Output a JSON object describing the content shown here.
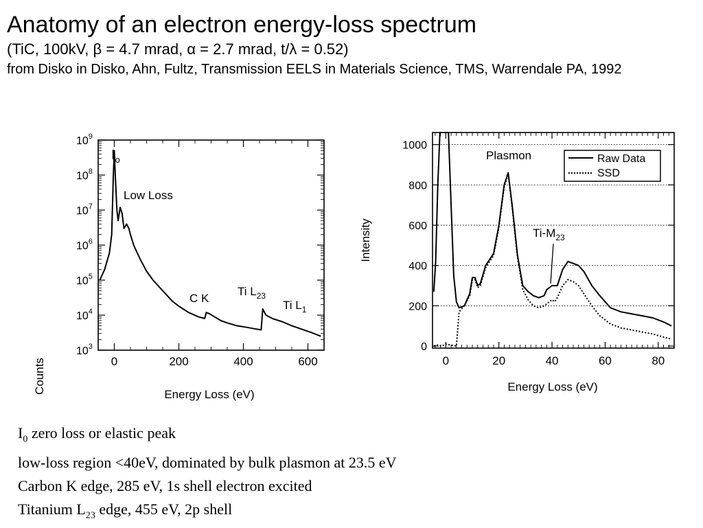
{
  "header": {
    "title": "Anatomy of an electron energy-loss spectrum",
    "subtitle_parts": [
      "(TiC, 100kV, ",
      "β",
      " = 4.7 mrad, ",
      "α",
      " = 2.7 mrad, t/",
      "λ",
      " = 0.52)"
    ],
    "source": "from Disko in Disko, Ahn, Fultz, Transmission EELS in Materials Science, TMS, Warrendale PA, 1992"
  },
  "chart_data": [
    {
      "type": "line",
      "xlabel": "Energy Loss (eV)",
      "ylabel": "Counts",
      "xlim": [
        -50,
        650
      ],
      "ylim": [
        1000,
        1000000000
      ],
      "yscale": "log",
      "x_ticks": [
        0,
        200,
        400,
        600
      ],
      "x_tick_labels": [
        "0",
        "200",
        "400",
        "600"
      ],
      "y_ticks": [
        {
          "base": "10",
          "exp": "3"
        },
        {
          "base": "10",
          "exp": "4"
        },
        {
          "base": "10",
          "exp": "5"
        },
        {
          "base": "10",
          "exp": "6"
        },
        {
          "base": "10",
          "exp": "7"
        },
        {
          "base": "10",
          "exp": "8"
        },
        {
          "base": "10",
          "exp": "9"
        }
      ],
      "series": [
        {
          "x": [
            -45,
            -30,
            -15,
            -8,
            -3,
            0,
            3,
            8,
            12,
            18,
            24,
            30,
            38,
            45,
            50,
            60,
            80,
            100,
            120,
            150,
            180,
            200,
            230,
            260,
            280,
            285,
            295,
            310,
            330,
            350,
            380,
            410,
            440,
            455,
            460,
            470,
            490,
            520,
            550,
            580,
            610,
            640
          ],
          "y": [
            100000,
            200000,
            600000,
            2000000,
            100000000,
            500000000,
            100000000,
            10000000,
            5000000,
            12000000,
            8000000,
            3000000,
            4000000,
            3000000,
            2000000,
            1000000,
            400000,
            180000,
            100000,
            50000,
            25000,
            18000,
            12000,
            9000,
            8000,
            12000,
            11000,
            9000,
            7000,
            6000,
            5000,
            4500,
            4000,
            3800,
            15000,
            10000,
            8000,
            6500,
            5000,
            4000,
            3200,
            2500
          ]
        }
      ],
      "annotations": [
        {
          "text": "I",
          "sub": "o"
        },
        {
          "text": "Low Loss"
        },
        {
          "text": "C K"
        },
        {
          "text": "Ti L",
          "sub": "23"
        },
        {
          "text": "Ti L",
          "sub": "1"
        }
      ]
    },
    {
      "type": "line",
      "xlabel": "Energy Loss (eV)",
      "ylabel": "Intensity",
      "xlim": [
        -5,
        86
      ],
      "ylim": [
        -10,
        1060
      ],
      "x_ticks": [
        0,
        20,
        40,
        60,
        80
      ],
      "y_ticks": [
        0,
        200,
        400,
        600,
        800,
        1000
      ],
      "grid": true,
      "legend": "top-right",
      "series": [
        {
          "name": "Raw Data",
          "style": "solid",
          "x": [
            -4.5,
            -3.8,
            -3,
            -2.2,
            -1.5,
            0,
            1,
            2,
            3,
            4,
            5,
            7,
            9,
            10,
            11,
            12,
            13,
            15,
            18,
            20,
            22,
            23.5,
            25,
            27,
            29,
            31,
            33,
            35,
            37,
            38,
            39,
            40,
            41,
            42,
            44,
            46,
            48,
            50,
            52,
            55,
            58,
            62,
            66,
            70,
            74,
            78,
            82,
            85
          ],
          "y": [
            270,
            420,
            800,
            1060,
            1060,
            1060,
            1060,
            700,
            350,
            220,
            190,
            200,
            260,
            340,
            340,
            300,
            310,
            400,
            460,
            600,
            800,
            860,
            700,
            450,
            300,
            270,
            250,
            240,
            250,
            280,
            290,
            300,
            300,
            300,
            380,
            420,
            410,
            400,
            370,
            300,
            250,
            190,
            170,
            160,
            150,
            140,
            120,
            100
          ]
        },
        {
          "name": "SSD",
          "style": "dotted",
          "x": [
            -4.5,
            -3,
            -1.5,
            0,
            2,
            4,
            5,
            7,
            9,
            10,
            11,
            12,
            13,
            15,
            18,
            20,
            22,
            23.5,
            25,
            27,
            29,
            31,
            33,
            35,
            37,
            39,
            40,
            41,
            42,
            44,
            46,
            48,
            50,
            52,
            55,
            58,
            62,
            66,
            70,
            74,
            78,
            82,
            85
          ],
          "y": [
            0,
            5,
            0,
            10,
            5,
            0,
            170,
            200,
            250,
            330,
            330,
            290,
            300,
            390,
            450,
            590,
            790,
            855,
            690,
            440,
            280,
            230,
            200,
            190,
            200,
            220,
            230,
            220,
            240,
            300,
            330,
            320,
            300,
            260,
            200,
            150,
            110,
            90,
            80,
            70,
            60,
            45,
            35
          ]
        }
      ],
      "annotations": [
        {
          "text": "Plasmon"
        },
        {
          "text": "Ti-M",
          "sub": "23"
        }
      ]
    }
  ],
  "notes": [
    {
      "pre": "I",
      "sub": "0",
      "post": " zero loss or elastic peak"
    },
    {
      "pre": "low-loss region <40eV, dominated by bulk plasmon at 23.5 eV"
    },
    {
      "pre": "Carbon K edge, 285 eV, 1s shell electron excited"
    },
    {
      "pre": "Titanium L",
      "sub": "23",
      "post": " edge, 455 eV, 2p shell"
    }
  ]
}
